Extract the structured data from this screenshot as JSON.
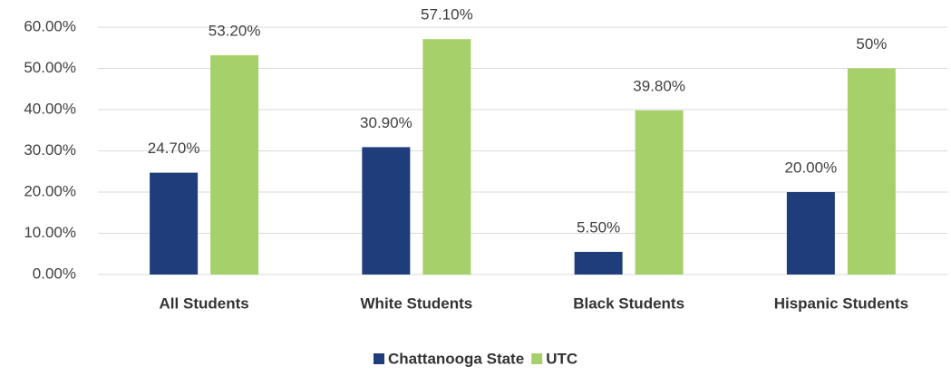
{
  "chart_data": {
    "type": "bar",
    "categories": [
      "All Students",
      "White Students",
      "Black Students",
      "Hispanic Students"
    ],
    "series": [
      {
        "name": "Chattanooga State",
        "color": "#1f3d7a",
        "values": [
          24.7,
          30.9,
          5.5,
          20.0
        ],
        "value_labels": [
          "24.70%",
          "30.90%",
          "5.50%",
          "20.00%"
        ]
      },
      {
        "name": "UTC",
        "color": "#a6d06a",
        "values": [
          53.2,
          57.1,
          39.8,
          50
        ],
        "value_labels": [
          "53.20%",
          "57.10%",
          "39.80%",
          "50%"
        ]
      }
    ],
    "ylim": [
      0,
      60
    ],
    "yticks": [
      {
        "value": 0,
        "label": "0.00%"
      },
      {
        "value": 10,
        "label": "10.00%"
      },
      {
        "value": 20,
        "label": "20.00%"
      },
      {
        "value": 30,
        "label": "30.00%"
      },
      {
        "value": 40,
        "label": "40.00%"
      },
      {
        "value": 50,
        "label": "50.00%"
      },
      {
        "value": 60,
        "label": "60.00%"
      }
    ],
    "grid": true,
    "legend": "bottom"
  }
}
